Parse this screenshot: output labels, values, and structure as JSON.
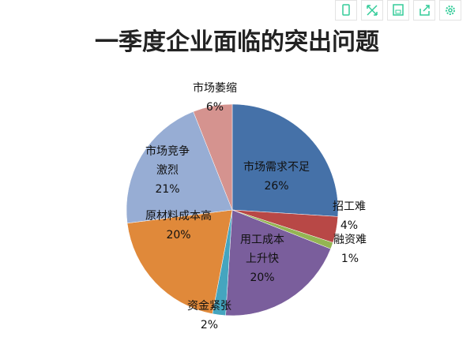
{
  "chart_data": {
    "type": "pie",
    "title": "一季度企业面临的突出问题",
    "categories": [
      "市场需求不足",
      "招工难",
      "融资难",
      "用工成本上升快",
      "资金紧张",
      "原材料成本高",
      "市场竞争激烈",
      "市场萎缩"
    ],
    "values": [
      26,
      4,
      1,
      20,
      2,
      20,
      21,
      6
    ],
    "value_labels": [
      "26%",
      "4%",
      "1%",
      "20%",
      "2%",
      "20%",
      "21%",
      "6%"
    ],
    "colors": [
      "#4571a8",
      "#b84846",
      "#94b553",
      "#7a5e9c",
      "#45a5bf",
      "#e0893a",
      "#97add4",
      "#d5938f"
    ]
  }
}
